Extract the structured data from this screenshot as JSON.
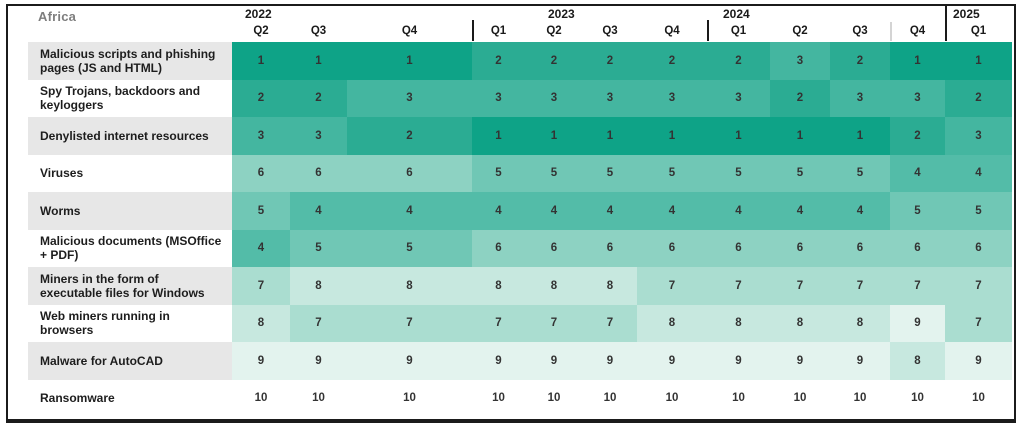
{
  "region_label": "Africa",
  "chart_data": {
    "type": "heatmap",
    "title": "Africa",
    "x": [
      "2022-Q2",
      "2022-Q3",
      "2022-Q4",
      "2023-Q1",
      "2023-Q2",
      "2023-Q3",
      "2023-Q4",
      "2024-Q1",
      "2024-Q2",
      "2024-Q3",
      "2024-Q4",
      "2025-Q1"
    ],
    "year_groups": [
      {
        "label": "2022",
        "quarters": [
          "Q2",
          "Q3",
          "Q4"
        ]
      },
      {
        "label": "2023",
        "quarters": [
          "Q1",
          "Q2",
          "Q3",
          "Q4"
        ]
      },
      {
        "label": "2024",
        "quarters": [
          "Q1",
          "Q2",
          "Q3",
          "Q4"
        ]
      },
      {
        "label": "2025",
        "quarters": [
          "Q1"
        ]
      }
    ],
    "rows": [
      {
        "name": "Malicious scripts and phishing pages (JS and HTML)",
        "values": [
          1,
          1,
          1,
          2,
          2,
          2,
          2,
          2,
          3,
          2,
          1,
          1
        ]
      },
      {
        "name": "Spy Trojans, backdoors and keyloggers",
        "values": [
          2,
          2,
          3,
          3,
          3,
          3,
          3,
          3,
          2,
          3,
          3,
          2
        ]
      },
      {
        "name": "Denylisted internet resources",
        "values": [
          3,
          3,
          2,
          1,
          1,
          1,
          1,
          1,
          1,
          1,
          2,
          3
        ]
      },
      {
        "name": "Viruses",
        "values": [
          6,
          6,
          6,
          5,
          5,
          5,
          5,
          5,
          5,
          5,
          4,
          4
        ]
      },
      {
        "name": "Worms",
        "values": [
          5,
          4,
          4,
          4,
          4,
          4,
          4,
          4,
          4,
          4,
          5,
          5
        ]
      },
      {
        "name": "Malicious documents (MSOffice + PDF)",
        "values": [
          4,
          5,
          5,
          6,
          6,
          6,
          6,
          6,
          6,
          6,
          6,
          6
        ]
      },
      {
        "name": "Miners in the form of executable files for Windows",
        "values": [
          7,
          8,
          8,
          8,
          8,
          8,
          7,
          7,
          7,
          7,
          7,
          7
        ]
      },
      {
        "name": "Web miners running in browsers",
        "values": [
          8,
          7,
          7,
          7,
          7,
          7,
          8,
          8,
          8,
          8,
          9,
          7
        ]
      },
      {
        "name": "Malware for AutoCAD",
        "values": [
          9,
          9,
          9,
          9,
          9,
          9,
          9,
          9,
          9,
          9,
          8,
          9
        ]
      },
      {
        "name": "Ransomware",
        "values": [
          10,
          10,
          10,
          10,
          10,
          10,
          10,
          10,
          10,
          10,
          10,
          10
        ]
      }
    ],
    "value_range": [
      1,
      10
    ],
    "rank_colors": {
      "1": "#0ea387",
      "2": "#2bac93",
      "3": "#44b6a0",
      "4": "#53bca8",
      "5": "#70c7b5",
      "6": "#8dd2c2",
      "7": "#aaddd0",
      "8": "#c7e8df",
      "9": "#e3f3ee",
      "10": "#ffffff"
    },
    "legend_position": "none",
    "grid": false
  }
}
